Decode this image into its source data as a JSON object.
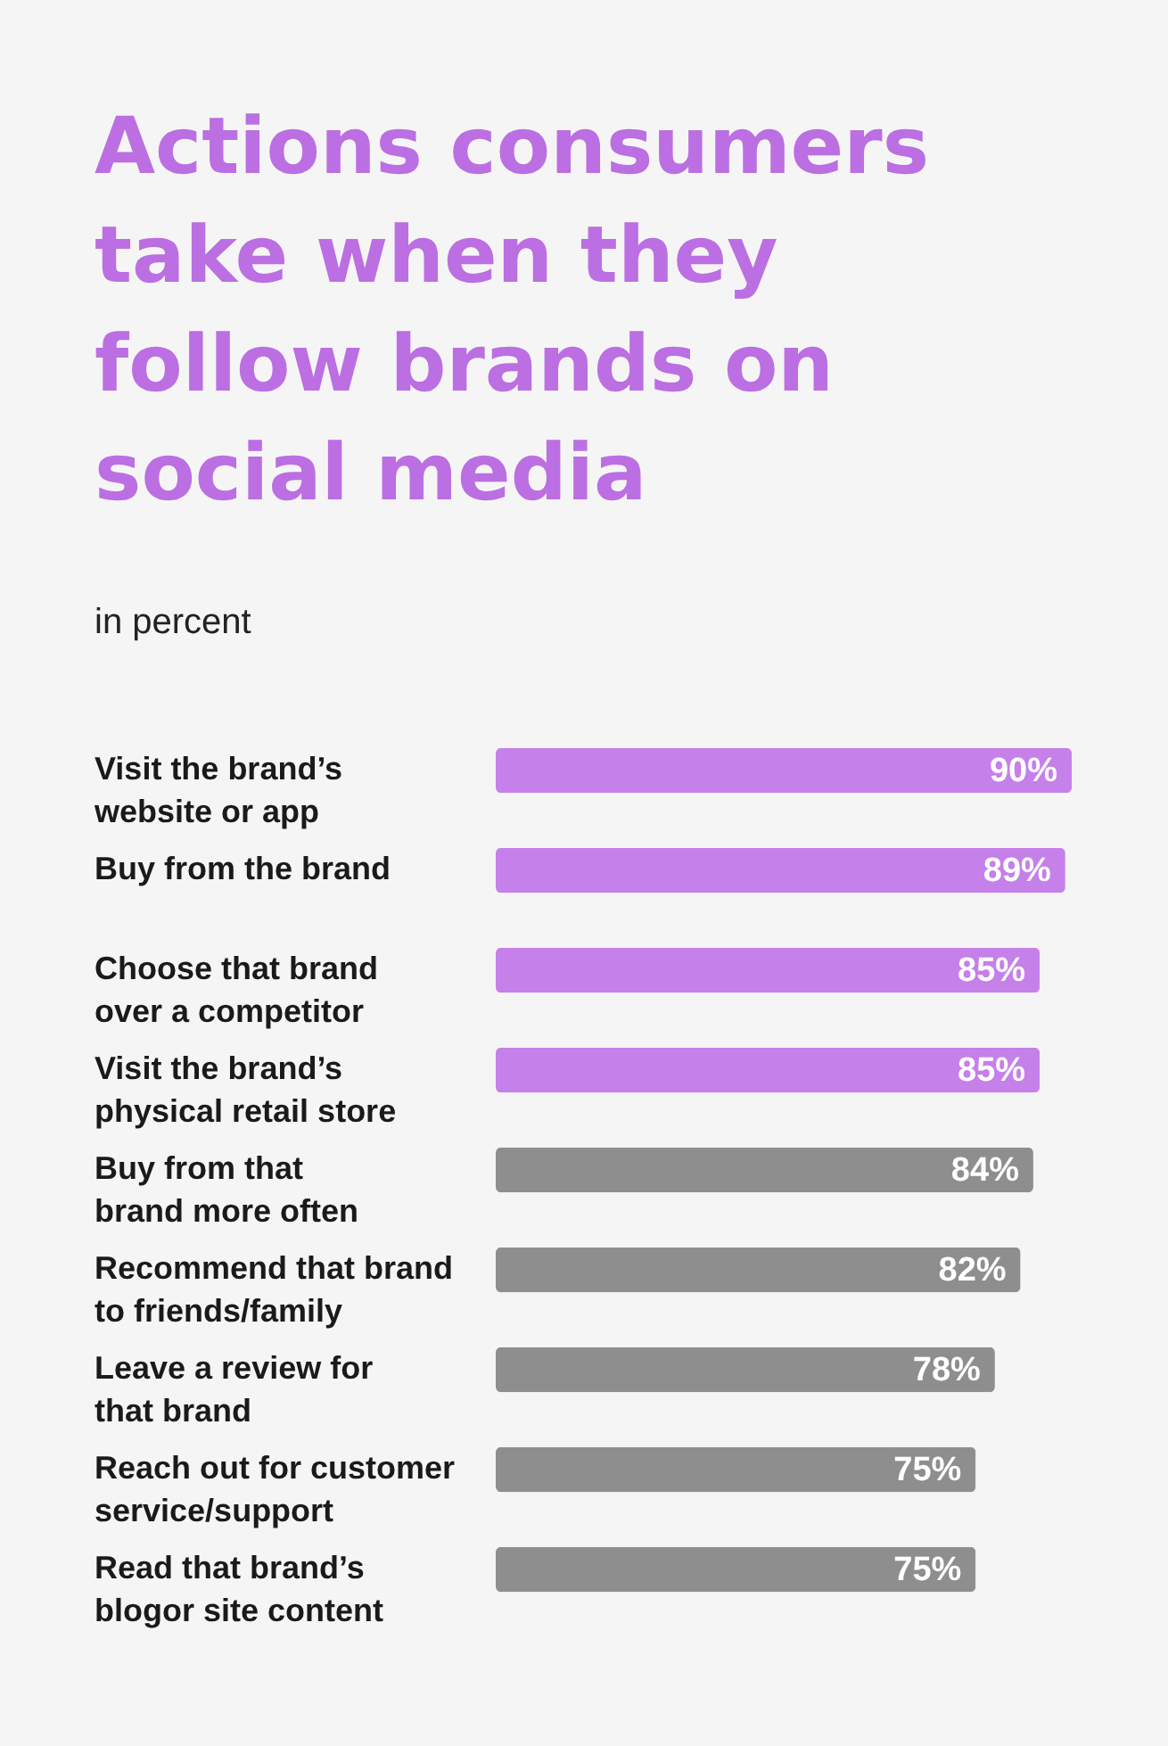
{
  "chart_data": {
    "type": "bar",
    "orientation": "horizontal",
    "title": "Actions consumers take when they follow brands on social media",
    "subtitle": "in percent",
    "categories": [
      "Visit the brand’s website or app",
      "Buy from the brand",
      "Choose that brand over a competitor",
      "Visit the brand’s physical retail store",
      "Buy from that brand more often",
      "Recommend that brand to friends/family",
      "Leave a review for that brand",
      "Reach out for customer service/support",
      "Read that brand’s blogor site content"
    ],
    "values": [
      90,
      89,
      85,
      85,
      84,
      82,
      78,
      75,
      75
    ],
    "colors": [
      "#c580ea",
      "#c580ea",
      "#c580ea",
      "#c580ea",
      "#8e8e8e",
      "#8e8e8e",
      "#8e8e8e",
      "#8e8e8e",
      "#8e8e8e"
    ],
    "value_labels": [
      "90%",
      "89%",
      "85%",
      "85%",
      "84%",
      "82%",
      "78%",
      "75%",
      "75%"
    ],
    "xlim": [
      0,
      90
    ],
    "tick_labels": "y"
  }
}
